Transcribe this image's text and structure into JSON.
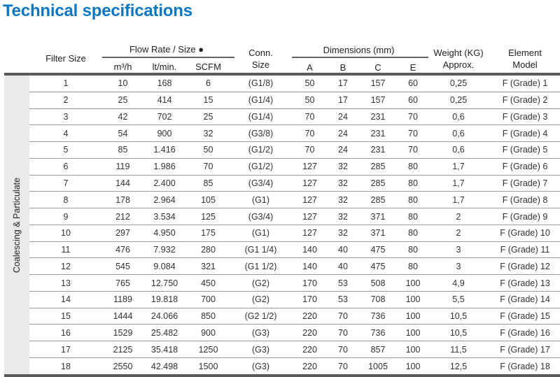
{
  "title": "Technical specifications",
  "headers": {
    "filter_size": "Filter Size",
    "flow_rate": "Flow Rate / Size ●",
    "m3h": "m³/h",
    "ltmin": "lt/min.",
    "scfm": "SCFM",
    "conn": "Conn.",
    "conn2": "Size",
    "dimensions": "Dimensions (mm)",
    "a": "A",
    "b": "B",
    "c": "C",
    "e": "E",
    "weight": "Weight (KG)",
    "weight2": "Approx.",
    "element": "Element",
    "element2": "Model"
  },
  "side_label": "Coalescing & Particulate",
  "rows": [
    [
      "1",
      "10",
      "168",
      "6",
      "(G1/8)",
      "50",
      "17",
      "157",
      "60",
      "0,25",
      "F (Grade) 1"
    ],
    [
      "2",
      "25",
      "414",
      "15",
      "(G1/4)",
      "50",
      "17",
      "157",
      "60",
      "0,25",
      "F (Grade) 2"
    ],
    [
      "3",
      "42",
      "702",
      "25",
      "(G1/4)",
      "70",
      "24",
      "231",
      "70",
      "0,6",
      "F (Grade) 3"
    ],
    [
      "4",
      "54",
      "900",
      "32",
      "(G3/8)",
      "70",
      "24",
      "231",
      "70",
      "0,6",
      "F (Grade) 4"
    ],
    [
      "5",
      "85",
      "1.416",
      "50",
      "(G1/2)",
      "70",
      "24",
      "231",
      "70",
      "0,6",
      "F (Grade) 5"
    ],
    [
      "6",
      "119",
      "1.986",
      "70",
      "(G1/2)",
      "127",
      "32",
      "285",
      "80",
      "1,7",
      "F (Grade) 6"
    ],
    [
      "7",
      "144",
      "2.400",
      "85",
      "(G3/4)",
      "127",
      "32",
      "285",
      "80",
      "1,7",
      "F (Grade) 7"
    ],
    [
      "8",
      "178",
      "2.964",
      "105",
      "(G1)",
      "127",
      "32",
      "285",
      "80",
      "1,7",
      "F (Grade) 8"
    ],
    [
      "9",
      "212",
      "3.534",
      "125",
      "(G3/4)",
      "127",
      "32",
      "371",
      "80",
      "2",
      "F (Grade) 9"
    ],
    [
      "10",
      "297",
      "4.950",
      "175",
      "(G1)",
      "127",
      "32",
      "371",
      "80",
      "2",
      "F (Grade) 10"
    ],
    [
      "11",
      "476",
      "7.932",
      "280",
      "(G1 1/4)",
      "140",
      "40",
      "475",
      "80",
      "3",
      "F (Grade) 11"
    ],
    [
      "12",
      "545",
      "9.084",
      "321",
      "(G1 1/2)",
      "140",
      "40",
      "475",
      "80",
      "3",
      "F (Grade) 12"
    ],
    [
      "13",
      "765",
      "12.750",
      "450",
      "(G2)",
      "170",
      "53",
      "508",
      "100",
      "4,9",
      "F (Grade) 13"
    ],
    [
      "14",
      "1189",
      "19.818",
      "700",
      "(G2)",
      "170",
      "53",
      "708",
      "100",
      "5,5",
      "F (Grade) 14"
    ],
    [
      "15",
      "1444",
      "24.066",
      "850",
      "(G2 1/2)",
      "220",
      "70",
      "736",
      "100",
      "10,5",
      "F (Grade) 15"
    ],
    [
      "16",
      "1529",
      "25.482",
      "900",
      "(G3)",
      "220",
      "70",
      "736",
      "100",
      "10,5",
      "F (Grade) 16"
    ],
    [
      "17",
      "2125",
      "35.418",
      "1250",
      "(G3)",
      "220",
      "70",
      "857",
      "100",
      "11,5",
      "F (Grade) 17"
    ],
    [
      "18",
      "2550",
      "42.498",
      "1500",
      "(G3)",
      "220",
      "70",
      "1005",
      "100",
      "12,5",
      "F (Grade) 18"
    ]
  ]
}
